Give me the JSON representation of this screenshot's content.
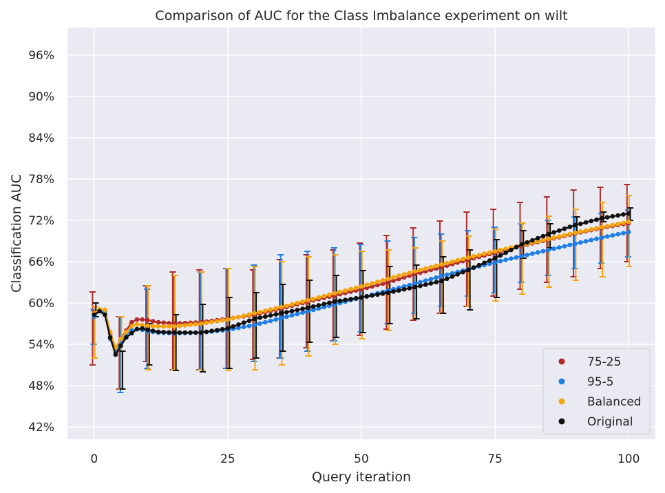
{
  "chart_data": {
    "type": "line",
    "title": "Comparison of AUC for the Class Imbalance experiment on wilt",
    "xlabel": "Query iteration",
    "ylabel": "Classification AUC",
    "xlim": [
      -5,
      105
    ],
    "ylim": [
      40.2,
      100
    ],
    "xticks": [
      0,
      25,
      50,
      75,
      100
    ],
    "xtick_labels": [
      "0",
      "25",
      "50",
      "75",
      "100"
    ],
    "yticks": [
      42,
      48,
      54,
      60,
      66,
      72,
      78,
      84,
      90,
      96
    ],
    "ytick_labels": [
      "42%",
      "48%",
      "54%",
      "60%",
      "66%",
      "72%",
      "78%",
      "84%",
      "90%",
      "96%"
    ],
    "grid": true,
    "legend_position": "bottom-right",
    "error_bars_every": 5,
    "series": [
      {
        "name": "75-25",
        "color": "#b22a2a",
        "knots": [
          [
            0,
            58.6
          ],
          [
            1,
            59.0
          ],
          [
            2,
            58.8
          ],
          [
            3,
            55.5
          ],
          [
            4,
            53.2
          ],
          [
            5,
            54.8
          ],
          [
            6,
            56.0
          ],
          [
            7,
            57.2
          ],
          [
            8,
            57.6
          ],
          [
            9,
            57.6
          ],
          [
            10,
            57.5
          ],
          [
            12,
            57.2
          ],
          [
            15,
            57.0
          ],
          [
            20,
            57.2
          ],
          [
            25,
            57.7
          ],
          [
            30,
            58.3
          ],
          [
            35,
            59.2
          ],
          [
            40,
            60.2
          ],
          [
            45,
            61.1
          ],
          [
            50,
            62.0
          ],
          [
            55,
            63.0
          ],
          [
            60,
            64.2
          ],
          [
            65,
            65.2
          ],
          [
            70,
            66.3
          ],
          [
            75,
            67.3
          ],
          [
            80,
            68.3
          ],
          [
            85,
            69.2
          ],
          [
            90,
            70.1
          ],
          [
            95,
            70.9
          ],
          [
            100,
            71.6
          ]
        ],
        "errors": [
          [
            0,
            51.0,
            61.6
          ],
          [
            5,
            47.5,
            58.0
          ],
          [
            10,
            51.5,
            62.5
          ],
          [
            15,
            50.3,
            64.5
          ],
          [
            20,
            50.3,
            64.8
          ],
          [
            25,
            50.5,
            65.0
          ],
          [
            30,
            51.8,
            64.8
          ],
          [
            35,
            52.0,
            66.3
          ],
          [
            40,
            53.5,
            67.0
          ],
          [
            45,
            54.5,
            67.7
          ],
          [
            50,
            55.3,
            68.7
          ],
          [
            55,
            56.2,
            69.8
          ],
          [
            60,
            57.5,
            70.9
          ],
          [
            65,
            58.5,
            71.9
          ],
          [
            70,
            59.5,
            73.2
          ],
          [
            75,
            61.0,
            73.6
          ],
          [
            80,
            62.0,
            74.6
          ],
          [
            85,
            63.0,
            75.4
          ],
          [
            90,
            63.8,
            76.4
          ],
          [
            95,
            65.0,
            76.8
          ],
          [
            100,
            66.0,
            77.2
          ]
        ]
      },
      {
        "name": "95-5",
        "color": "#1f7fe6",
        "knots": [
          [
            0,
            58.0
          ],
          [
            1,
            59.0
          ],
          [
            2,
            58.6
          ],
          [
            3,
            54.8
          ],
          [
            4,
            52.8
          ],
          [
            5,
            54.3
          ],
          [
            6,
            55.4
          ],
          [
            7,
            56.0
          ],
          [
            8,
            56.2
          ],
          [
            9,
            56.1
          ],
          [
            10,
            55.9
          ],
          [
            12,
            55.7
          ],
          [
            15,
            55.6
          ],
          [
            20,
            55.7
          ],
          [
            25,
            56.1
          ],
          [
            30,
            56.8
          ],
          [
            35,
            57.8
          ],
          [
            40,
            58.8
          ],
          [
            45,
            59.8
          ],
          [
            50,
            60.8
          ],
          [
            55,
            61.8
          ],
          [
            60,
            62.8
          ],
          [
            65,
            63.9
          ],
          [
            70,
            64.9
          ],
          [
            75,
            65.9
          ],
          [
            80,
            66.8
          ],
          [
            85,
            67.7
          ],
          [
            90,
            68.6
          ],
          [
            95,
            69.5
          ],
          [
            100,
            70.3
          ]
        ],
        "errors": [
          [
            0,
            54.0,
            59.0
          ],
          [
            5,
            47.0,
            58.0
          ],
          [
            10,
            50.5,
            62.0
          ],
          [
            15,
            50.3,
            64.0
          ],
          [
            20,
            50.3,
            64.5
          ],
          [
            25,
            50.5,
            65.0
          ],
          [
            30,
            51.5,
            65.5
          ],
          [
            35,
            52.0,
            67.0
          ],
          [
            40,
            53.0,
            67.5
          ],
          [
            45,
            54.5,
            68.0
          ],
          [
            50,
            55.8,
            68.5
          ],
          [
            55,
            57.0,
            69.0
          ],
          [
            60,
            58.5,
            69.5
          ],
          [
            65,
            59.5,
            70.0
          ],
          [
            70,
            61.0,
            70.5
          ],
          [
            75,
            61.5,
            71.0
          ],
          [
            80,
            63.0,
            71.5
          ],
          [
            85,
            64.0,
            72.0
          ],
          [
            90,
            65.0,
            72.5
          ],
          [
            95,
            65.8,
            73.0
          ],
          [
            100,
            66.7,
            73.5
          ]
        ]
      },
      {
        "name": "Balanced",
        "color": "#f5a40e",
        "knots": [
          [
            0,
            58.5
          ],
          [
            1,
            59.1
          ],
          [
            2,
            59.0
          ],
          [
            3,
            55.8
          ],
          [
            4,
            53.5
          ],
          [
            5,
            54.8
          ],
          [
            6,
            55.8
          ],
          [
            7,
            56.6
          ],
          [
            8,
            56.9
          ],
          [
            9,
            56.8
          ],
          [
            10,
            56.7
          ],
          [
            12,
            56.6
          ],
          [
            15,
            56.6
          ],
          [
            20,
            57.0
          ],
          [
            25,
            57.6
          ],
          [
            30,
            58.5
          ],
          [
            35,
            59.4
          ],
          [
            40,
            60.4
          ],
          [
            45,
            61.4
          ],
          [
            50,
            62.4
          ],
          [
            55,
            63.5
          ],
          [
            60,
            64.6
          ],
          [
            65,
            65.6
          ],
          [
            70,
            66.6
          ],
          [
            75,
            67.5
          ],
          [
            80,
            68.4
          ],
          [
            85,
            69.3
          ],
          [
            90,
            70.2
          ],
          [
            95,
            71.0
          ],
          [
            100,
            71.8
          ]
        ],
        "errors": [
          [
            0,
            52.0,
            59.5
          ],
          [
            5,
            47.5,
            58.0
          ],
          [
            10,
            50.3,
            62.5
          ],
          [
            15,
            50.3,
            64.0
          ],
          [
            20,
            50.3,
            64.5
          ],
          [
            25,
            50.2,
            65.0
          ],
          [
            30,
            50.3,
            65.3
          ],
          [
            35,
            51.0,
            66.0
          ],
          [
            40,
            52.3,
            66.7
          ],
          [
            45,
            54.0,
            67.0
          ],
          [
            50,
            54.8,
            67.5
          ],
          [
            55,
            56.0,
            67.7
          ],
          [
            60,
            57.7,
            68.0
          ],
          [
            65,
            58.5,
            69.0
          ],
          [
            70,
            59.5,
            69.7
          ],
          [
            75,
            60.3,
            70.7
          ],
          [
            80,
            61.3,
            71.6
          ],
          [
            85,
            62.3,
            72.6
          ],
          [
            90,
            63.3,
            73.6
          ],
          [
            95,
            63.8,
            74.6
          ],
          [
            100,
            65.3,
            75.6
          ]
        ]
      },
      {
        "name": "Original",
        "color": "#111111",
        "knots": [
          [
            0,
            58.3
          ],
          [
            1,
            58.8
          ],
          [
            2,
            58.3
          ],
          [
            3,
            55.0
          ],
          [
            4,
            52.5
          ],
          [
            5,
            53.8
          ],
          [
            6,
            55.0
          ],
          [
            7,
            55.6
          ],
          [
            8,
            56.2
          ],
          [
            9,
            56.3
          ],
          [
            10,
            56.1
          ],
          [
            12,
            55.8
          ],
          [
            15,
            55.7
          ],
          [
            20,
            55.7
          ],
          [
            25,
            56.3
          ],
          [
            30,
            57.7
          ],
          [
            35,
            58.5
          ],
          [
            40,
            59.3
          ],
          [
            45,
            60.2
          ],
          [
            50,
            60.8
          ],
          [
            55,
            61.5
          ],
          [
            60,
            62.3
          ],
          [
            65,
            63.2
          ],
          [
            70,
            64.8
          ],
          [
            75,
            66.5
          ],
          [
            80,
            68.5
          ],
          [
            85,
            70.0
          ],
          [
            90,
            71.3
          ],
          [
            95,
            72.3
          ],
          [
            100,
            73.0
          ]
        ],
        "errors": [
          [
            0,
            58.0,
            60.0
          ],
          [
            5,
            47.5,
            53.0
          ],
          [
            10,
            51.0,
            57.0
          ],
          [
            15,
            50.2,
            58.3
          ],
          [
            20,
            50.0,
            59.8
          ],
          [
            25,
            50.5,
            60.8
          ],
          [
            30,
            52.0,
            61.5
          ],
          [
            35,
            53.0,
            62.7
          ],
          [
            40,
            54.3,
            63.3
          ],
          [
            45,
            55.0,
            64.0
          ],
          [
            50,
            55.7,
            64.7
          ],
          [
            55,
            57.0,
            65.3
          ],
          [
            60,
            57.7,
            65.5
          ],
          [
            65,
            58.5,
            66.7
          ],
          [
            70,
            59.0,
            67.7
          ],
          [
            75,
            60.8,
            69.2
          ],
          [
            80,
            66.5,
            70.5
          ],
          [
            85,
            68.0,
            71.5
          ],
          [
            90,
            70.3,
            72.5
          ],
          [
            95,
            71.8,
            73.2
          ],
          [
            100,
            72.0,
            73.8
          ]
        ]
      }
    ]
  }
}
